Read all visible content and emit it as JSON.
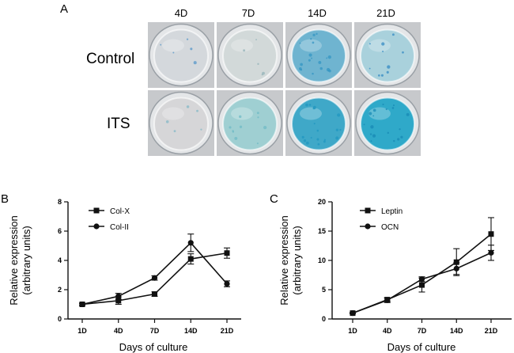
{
  "panel_a": {
    "letter": "A",
    "columns": [
      "4D",
      "7D",
      "14D",
      "21D"
    ],
    "rows": [
      "Control",
      "ITS"
    ],
    "wells": [
      {
        "row": "Control",
        "day": "4D",
        "stain": "faint",
        "fill": "#d4d8dc",
        "speck": "#4f93c8"
      },
      {
        "row": "Control",
        "day": "7D",
        "stain": "faint",
        "fill": "#d2d9d9",
        "speck": "#8fb0b6"
      },
      {
        "row": "Control",
        "day": "14D",
        "stain": "strong",
        "fill": "#6fb4d0",
        "speck": "#2f93c2"
      },
      {
        "row": "Control",
        "day": "21D",
        "stain": "moderate",
        "fill": "#a9d1dc",
        "speck": "#2c86c2"
      },
      {
        "row": "ITS",
        "day": "4D",
        "stain": "faint",
        "fill": "#d6d6d8",
        "speck": "#7fb6c6"
      },
      {
        "row": "ITS",
        "day": "7D",
        "stain": "moderate",
        "fill": "#9fcfd2",
        "speck": "#6cb9c4"
      },
      {
        "row": "ITS",
        "day": "14D",
        "stain": "strong",
        "fill": "#3fa8c8",
        "speck": "#1e95bf"
      },
      {
        "row": "ITS",
        "day": "21D",
        "stain": "strong",
        "fill": "#2fa9c9",
        "speck": "#1687b3"
      }
    ]
  },
  "chart_data": [
    {
      "panel": "B",
      "type": "line",
      "categories": [
        "1D",
        "4D",
        "7D",
        "14D",
        "21D"
      ],
      "series": [
        {
          "name": "Col-X",
          "marker": "square",
          "values": [
            1.0,
            1.25,
            1.7,
            4.1,
            4.5
          ],
          "errors": [
            0.08,
            0.25,
            0.15,
            0.35,
            0.35
          ]
        },
        {
          "name": "Col-II",
          "marker": "circle",
          "values": [
            1.0,
            1.55,
            2.8,
            5.2,
            2.4
          ],
          "errors": [
            0.05,
            0.2,
            0.15,
            0.6,
            0.2
          ]
        }
      ],
      "xlabel": "Days of culture",
      "ylabel": [
        "Relative expression",
        "(arbitrary units)"
      ],
      "ylim": [
        0,
        8
      ],
      "yticks": [
        0,
        2,
        4,
        6,
        8
      ],
      "legend": "top-left",
      "grid": false
    },
    {
      "panel": "C",
      "type": "line",
      "categories": [
        "1D",
        "4D",
        "7D",
        "14D",
        "21D"
      ],
      "series": [
        {
          "name": "Leptin",
          "marker": "square",
          "values": [
            1.0,
            3.3,
            5.8,
            9.7,
            14.5
          ],
          "errors": [
            0.1,
            0.3,
            1.2,
            2.3,
            2.8
          ]
        },
        {
          "name": "OCN",
          "marker": "circle",
          "values": [
            1.0,
            3.2,
            6.8,
            8.6,
            11.3
          ],
          "errors": [
            0.1,
            0.4,
            0.4,
            1.0,
            1.3
          ]
        }
      ],
      "xlabel": "Days of culture",
      "ylabel": [
        "Relative expression",
        "(arbitrary units)"
      ],
      "ylim": [
        0,
        20
      ],
      "yticks": [
        0,
        5,
        10,
        15,
        20
      ],
      "legend": "top-left",
      "grid": false
    }
  ]
}
